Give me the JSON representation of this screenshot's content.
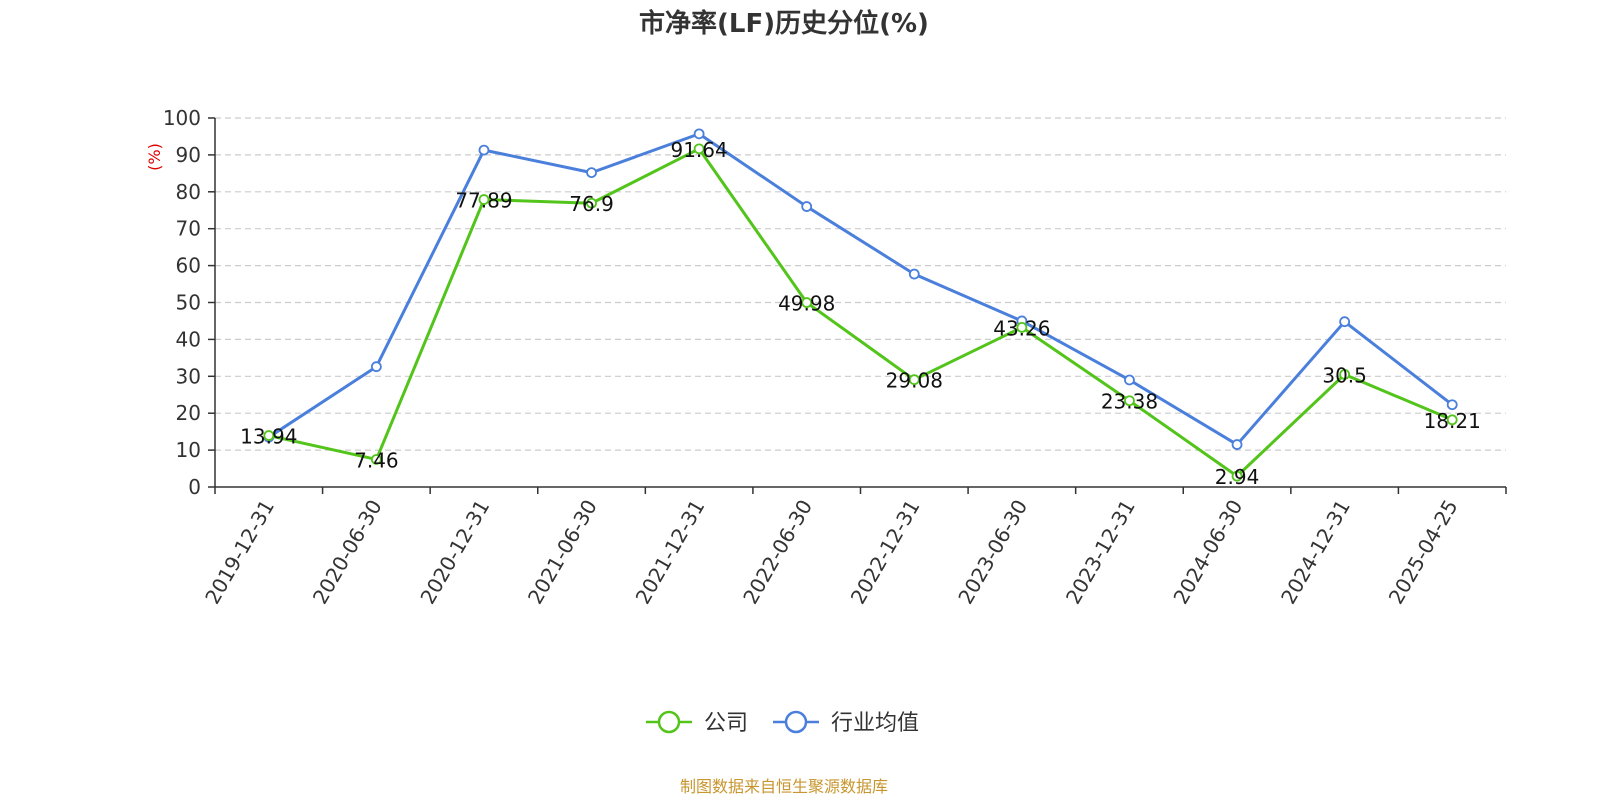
{
  "chart_data": {
    "type": "line",
    "title": "市净率(LF)历史分位(%)",
    "ylabel": "(%)",
    "xlabel": "",
    "categories": [
      "2019-12-31",
      "2020-06-30",
      "2020-12-31",
      "2021-06-30",
      "2021-12-31",
      "2022-06-30",
      "2022-12-31",
      "2023-06-30",
      "2023-12-31",
      "2024-06-30",
      "2024-12-31",
      "2025-04-25"
    ],
    "ylim": [
      0,
      100
    ],
    "yticks": [
      0,
      10,
      20,
      30,
      40,
      50,
      60,
      70,
      80,
      90,
      100
    ],
    "grid": true,
    "legend_position": "bottom",
    "series": [
      {
        "name": "公司",
        "color": "#52c41a",
        "values": [
          13.94,
          7.46,
          77.89,
          76.9,
          91.64,
          49.98,
          29.08,
          43.26,
          23.38,
          2.94,
          30.5,
          18.21
        ],
        "labels": [
          "13.94",
          "7.46",
          "77.89",
          "76.9",
          "91.64",
          "49.98",
          "29.08",
          "43.26",
          "23.38",
          "2.94",
          "30.5",
          "18.21"
        ]
      },
      {
        "name": "行业均值",
        "color": "#4a7fdc",
        "values": [
          13.5,
          32.6,
          91.3,
          85.2,
          95.7,
          76.0,
          57.7,
          45.0,
          29.0,
          11.5,
          44.8,
          22.3
        ]
      }
    ]
  },
  "source": "制图数据来自恒生聚源数据库"
}
